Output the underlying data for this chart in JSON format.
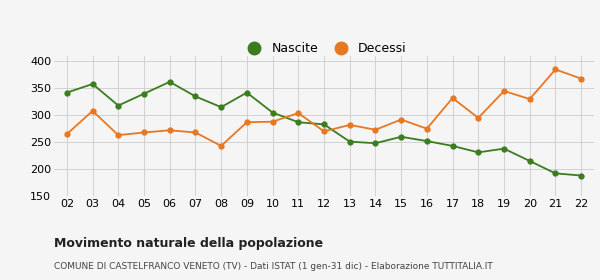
{
  "years": [
    2,
    3,
    4,
    5,
    6,
    7,
    8,
    9,
    10,
    11,
    12,
    13,
    14,
    15,
    16,
    17,
    18,
    19,
    20,
    21,
    22
  ],
  "nascite": [
    342,
    358,
    318,
    340,
    362,
    335,
    315,
    342,
    305,
    287,
    283,
    251,
    248,
    260,
    252,
    243,
    231,
    238,
    215,
    192,
    188
  ],
  "decessi": [
    265,
    308,
    263,
    268,
    272,
    268,
    243,
    287,
    288,
    304,
    270,
    282,
    273,
    292,
    275,
    332,
    295,
    345,
    330,
    385,
    368
  ],
  "nascite_color": "#3a7d1e",
  "decessi_color": "#e87722",
  "title": "Movimento naturale della popolazione",
  "subtitle": "COMUNE DI CASTELFRANCO VENETO (TV) - Dati ISTAT (1 gen-31 dic) - Elaborazione TUTTITALIA.IT",
  "legend_nascite": "Nascite",
  "legend_decessi": "Decessi",
  "ylim": [
    150,
    410
  ],
  "yticks": [
    150,
    200,
    250,
    300,
    350,
    400
  ],
  "bg_color": "#f5f5f5",
  "grid_color": "#cccccc",
  "tick_fontsize": 8,
  "title_fontsize": 9,
  "subtitle_fontsize": 6.5
}
